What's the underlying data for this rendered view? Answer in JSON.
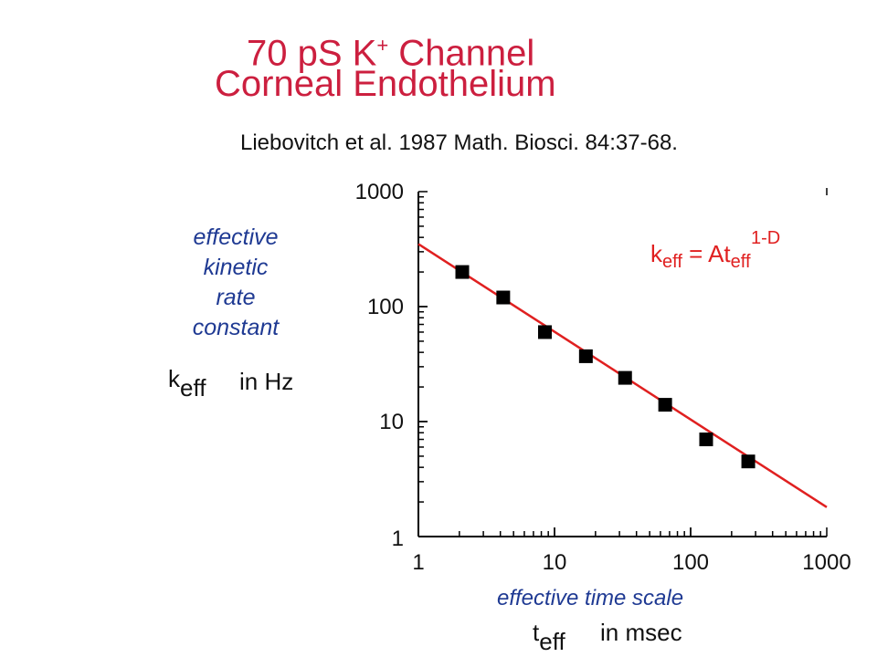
{
  "title": {
    "line1": "70 pS K",
    "line1_sup": "+",
    "line1_rest": " Channel",
    "line2": "Corneal Endothelium"
  },
  "citation": "Liebovitch et al.  1987  Math. Biosci. 84:37-68.",
  "y_label": {
    "lines": [
      "effective",
      "kinetic",
      "rate",
      "constant"
    ],
    "symbol": "k",
    "symbol_sub": "eff",
    "units": "in  Hz"
  },
  "x_label": {
    "line1": "effective time scale",
    "symbol": "t",
    "symbol_sub": "eff",
    "units": "in  msec"
  },
  "equation": {
    "k": "k",
    "k_sub": "eff",
    "eq": " = At",
    "t_sub": "eff",
    "t_sup": "1-D"
  },
  "colors": {
    "title": "#cc1f3f",
    "label": "#1f3a93",
    "fit_line": "#e02020",
    "points": "#000000"
  },
  "chart_data": {
    "type": "scatter",
    "xscale": "log",
    "yscale": "log",
    "xlim": [
      1,
      1000
    ],
    "ylim": [
      1,
      1000
    ],
    "x_ticks": [
      "1",
      "10",
      "100",
      "1000"
    ],
    "y_ticks": [
      "1",
      "10",
      "100",
      "1000"
    ],
    "series": [
      {
        "kind": "points",
        "x": [
          2.1,
          4.2,
          8.5,
          17,
          33,
          65,
          130,
          265
        ],
        "y": [
          200,
          120,
          60,
          37,
          24,
          14,
          7,
          4.5
        ]
      },
      {
        "kind": "fit_line",
        "x": [
          1,
          1000
        ],
        "y": [
          350,
          1.8
        ]
      }
    ],
    "grid": false
  }
}
